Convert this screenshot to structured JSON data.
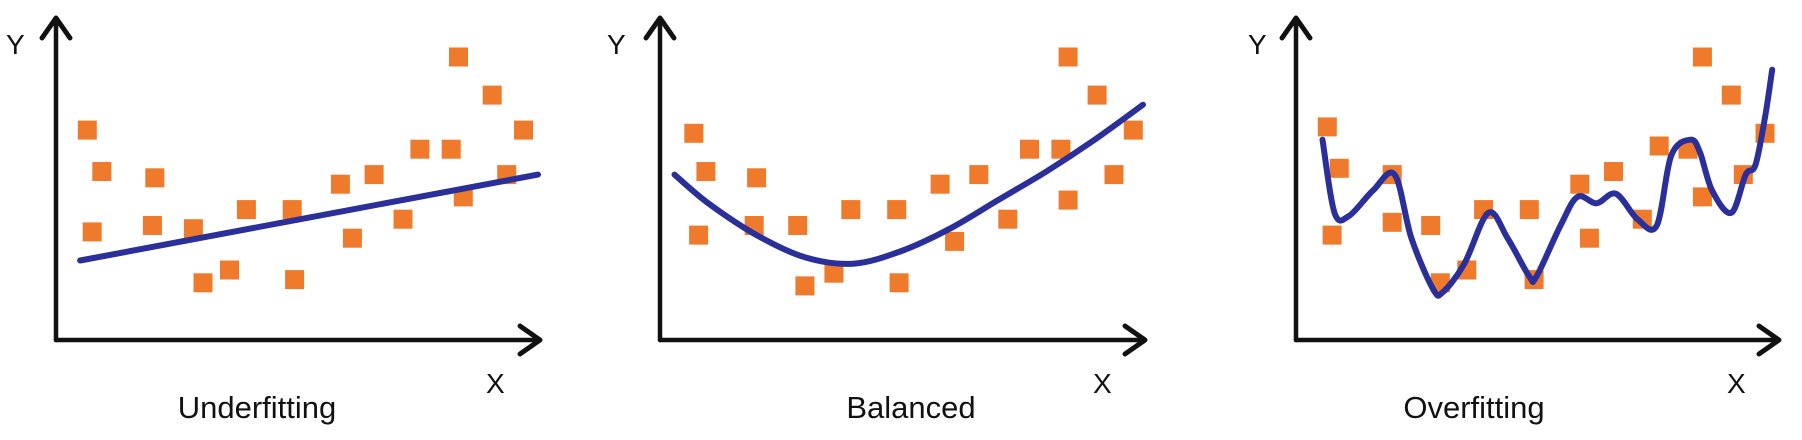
{
  "colors": {
    "points": "#f07a2c",
    "fit": "#2b2f9a",
    "axes": "#111111"
  },
  "chart_data": [
    {
      "type": "scatter",
      "title": "Underfitting",
      "xlabel": "X",
      "ylabel": "Y",
      "xlim": [
        0,
        10
      ],
      "ylim": [
        0,
        10
      ],
      "grid": false,
      "points": [
        [
          0.65,
          6.6
        ],
        [
          0.95,
          5.3
        ],
        [
          0.75,
          3.4
        ],
        [
          2.05,
          5.1
        ],
        [
          2.0,
          3.6
        ],
        [
          2.85,
          3.5
        ],
        [
          3.05,
          1.8
        ],
        [
          3.6,
          2.2
        ],
        [
          3.95,
          4.1
        ],
        [
          4.9,
          4.1
        ],
        [
          4.95,
          1.9
        ],
        [
          5.9,
          4.9
        ],
        [
          6.15,
          3.2
        ],
        [
          6.6,
          5.2
        ],
        [
          7.2,
          3.8
        ],
        [
          7.55,
          6.0
        ],
        [
          8.2,
          6.0
        ],
        [
          8.45,
          4.5
        ],
        [
          8.35,
          8.9
        ],
        [
          9.05,
          7.7
        ],
        [
          9.35,
          5.2
        ],
        [
          9.7,
          6.6
        ]
      ],
      "fit": {
        "kind": "linear",
        "x": [
          0.5,
          10
        ],
        "y": [
          2.5,
          5.2
        ]
      }
    },
    {
      "type": "scatter",
      "title": "Balanced",
      "xlabel": "X",
      "ylabel": "Y",
      "xlim": [
        0,
        10
      ],
      "ylim": [
        0,
        10
      ],
      "grid": false,
      "points": [
        [
          0.7,
          6.5
        ],
        [
          0.95,
          5.3
        ],
        [
          0.8,
          3.3
        ],
        [
          2.0,
          5.1
        ],
        [
          1.95,
          3.6
        ],
        [
          2.85,
          3.6
        ],
        [
          3.0,
          1.7
        ],
        [
          3.6,
          2.1
        ],
        [
          3.95,
          4.1
        ],
        [
          4.9,
          4.1
        ],
        [
          4.95,
          1.8
        ],
        [
          5.8,
          4.9
        ],
        [
          6.1,
          3.1
        ],
        [
          6.6,
          5.2
        ],
        [
          7.2,
          3.8
        ],
        [
          7.65,
          6.0
        ],
        [
          8.3,
          6.0
        ],
        [
          8.45,
          4.4
        ],
        [
          8.45,
          8.9
        ],
        [
          9.05,
          7.7
        ],
        [
          9.4,
          5.2
        ],
        [
          9.8,
          6.6
        ]
      ],
      "fit": {
        "kind": "quadratic",
        "x": [
          0.3,
          1,
          2,
          3,
          4,
          5,
          6,
          7,
          8,
          9,
          10
        ],
        "y": [
          5.2,
          4.3,
          3.3,
          2.6,
          2.4,
          2.8,
          3.5,
          4.4,
          5.3,
          6.3,
          7.4
        ]
      }
    },
    {
      "type": "scatter",
      "title": "Overfitting",
      "xlabel": "X",
      "ylabel": "Y",
      "xlim": [
        0,
        10
      ],
      "ylim": [
        0,
        10
      ],
      "grid": false,
      "points": [
        [
          0.65,
          6.7
        ],
        [
          0.9,
          5.4
        ],
        [
          0.75,
          3.3
        ],
        [
          2.0,
          5.2
        ],
        [
          2.0,
          3.7
        ],
        [
          2.8,
          3.6
        ],
        [
          3.0,
          1.8
        ],
        [
          3.55,
          2.2
        ],
        [
          3.9,
          4.1
        ],
        [
          4.85,
          4.1
        ],
        [
          4.95,
          1.9
        ],
        [
          5.9,
          4.9
        ],
        [
          6.1,
          3.2
        ],
        [
          6.6,
          5.3
        ],
        [
          7.2,
          3.8
        ],
        [
          7.55,
          6.1
        ],
        [
          8.15,
          6.0
        ],
        [
          8.45,
          4.5
        ],
        [
          8.45,
          8.9
        ],
        [
          9.05,
          7.7
        ],
        [
          9.3,
          5.2
        ],
        [
          9.75,
          6.5
        ]
      ],
      "fit": {
        "kind": "high-degree",
        "x": [
          0.55,
          0.8,
          1.1,
          1.6,
          2.05,
          2.4,
          2.85,
          3.05,
          3.5,
          4.0,
          4.4,
          4.85,
          5.0,
          5.5,
          5.85,
          6.25,
          6.65,
          7.1,
          7.5,
          7.8,
          8.2,
          8.4,
          8.65,
          9.05,
          9.35,
          9.55,
          9.75,
          9.9
        ],
        "y": [
          6.3,
          4.0,
          3.9,
          4.7,
          5.2,
          3.2,
          1.6,
          1.5,
          2.4,
          4.0,
          3.2,
          2.0,
          2.0,
          3.6,
          4.5,
          4.3,
          4.6,
          3.8,
          3.6,
          5.8,
          6.3,
          5.9,
          4.7,
          4.0,
          5.2,
          5.5,
          7.0,
          8.5
        ]
      }
    }
  ]
}
